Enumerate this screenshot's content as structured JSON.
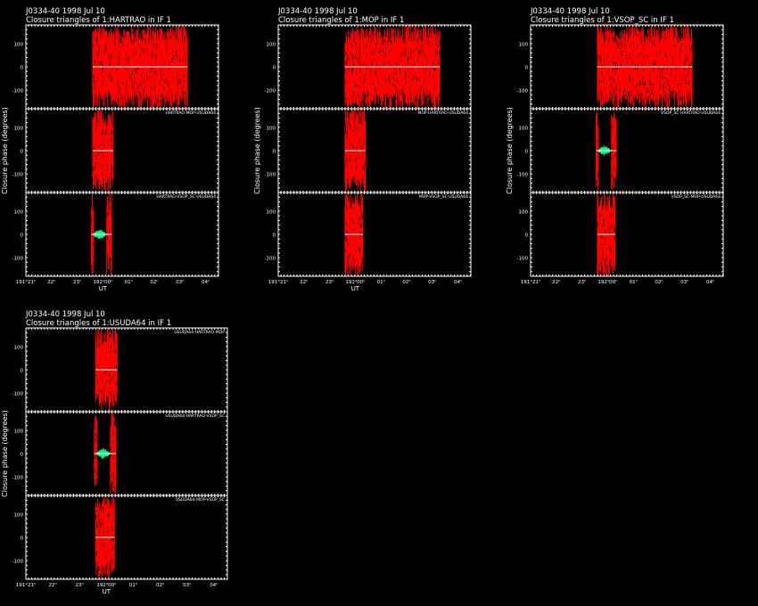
{
  "colors": {
    "background": "#000000",
    "axes": "#ffffff",
    "data": "#ff0000",
    "model": "#00ff80",
    "zero_line": "#ffffff"
  },
  "chart_data": [
    {
      "type": "scatter",
      "title": "J0334-40  1998 Jul 10",
      "subtitle": "Closure triangles of 1:HARTRAO in IF 1",
      "xlabel": "UT",
      "ylabel": "Closure phase  (degrees)",
      "xlim": [
        21.0,
        28.5
      ],
      "x_ticks": [
        "191°21ʰ",
        "22ʰ",
        "23ʰ",
        "192ᵈ00ʰ",
        "01ʰ",
        "02ʰ",
        "03ʰ",
        "04ʰ"
      ],
      "ylim": [
        -180,
        180
      ],
      "y_ticks": [
        "100",
        "0",
        "-100"
      ],
      "grid": false,
      "panels": [
        {
          "label": "",
          "data": [
            {
              "x0": 23.6,
              "x1": 27.3,
              "spread": 180
            }
          ],
          "zero": [
            23.6,
            27.3
          ],
          "model": null
        },
        {
          "label": "HARTRAO-MOP-USUDA64",
          "data": [
            {
              "x0": 23.6,
              "x1": 24.4,
              "spread": 180
            }
          ],
          "zero": [
            23.6,
            24.4
          ],
          "model": null
        },
        {
          "label": "HARTRAO-VSOP_SC-USUDA64",
          "data": [
            {
              "x0": 23.55,
              "x1": 23.65,
              "spread": 180
            },
            {
              "x0": 24.15,
              "x1": 24.35,
              "spread": 180
            }
          ],
          "zero": [
            23.55,
            24.35
          ],
          "model": {
            "x0": 23.65,
            "x1": 24.1,
            "spread": 25
          }
        }
      ]
    },
    {
      "type": "scatter",
      "title": "J0334-40  1998 Jul 10",
      "subtitle": "Closure triangles of 1:MOP in IF 1",
      "xlabel": "UT",
      "ylabel": "Closure phase  (degrees)",
      "xlim": [
        21.0,
        28.5
      ],
      "x_ticks": [
        "191°21ʰ",
        "22ʰ",
        "23ʰ",
        "192ᵈ00ʰ",
        "01ʰ",
        "02ʰ",
        "03ʰ",
        "04ʰ"
      ],
      "ylim": [
        -180,
        180
      ],
      "y_ticks": [
        "100",
        "0",
        "-100"
      ],
      "grid": false,
      "panels": [
        {
          "label": "",
          "data": [
            {
              "x0": 23.6,
              "x1": 27.3,
              "spread": 180
            }
          ],
          "zero": [
            23.6,
            27.3
          ],
          "model": null
        },
        {
          "label": "MOP-HARTRAO-USUDA64",
          "data": [
            {
              "x0": 23.6,
              "x1": 24.4,
              "spread": 180
            }
          ],
          "zero": [
            23.6,
            24.4
          ],
          "model": null
        },
        {
          "label": "MOP-VSOP_SC-USUDA64",
          "data": [
            {
              "x0": 23.6,
              "x1": 24.3,
              "spread": 180
            }
          ],
          "zero": [
            23.6,
            24.3
          ],
          "model": null
        }
      ]
    },
    {
      "type": "scatter",
      "title": "J0334-40  1998 Jul 10",
      "subtitle": "Closure triangles of 1:VSOP_SC in IF 1",
      "xlabel": "",
      "ylabel": "Closure phase  (degrees)",
      "xlim": [
        21.0,
        28.5
      ],
      "x_ticks": [
        "191°21ʰ",
        "22ʰ",
        "23ʰ",
        "192ᵈ00ʰ",
        "01ʰ",
        "02ʰ",
        "03ʰ",
        "04ʰ"
      ],
      "ylim": [
        -180,
        180
      ],
      "y_ticks": [
        "100",
        "0",
        "-100"
      ],
      "grid": false,
      "panels": [
        {
          "label": "",
          "data": [
            {
              "x0": 23.6,
              "x1": 27.3,
              "spread": 180
            }
          ],
          "zero": [
            23.6,
            27.3
          ],
          "model": null
        },
        {
          "label": "VSOP_SC-HARTRAO-USUDA64",
          "data": [
            {
              "x0": 23.55,
              "x1": 23.65,
              "spread": 180
            },
            {
              "x0": 24.15,
              "x1": 24.35,
              "spread": 180
            }
          ],
          "zero": [
            23.55,
            24.35
          ],
          "model": {
            "x0": 23.65,
            "x1": 24.1,
            "spread": 25
          }
        },
        {
          "label": "VSOP_SC-MOP-USUDA64",
          "data": [
            {
              "x0": 23.6,
              "x1": 24.3,
              "spread": 180
            }
          ],
          "zero": [
            23.6,
            24.3
          ],
          "model": null
        }
      ]
    },
    {
      "type": "scatter",
      "title": "J0334-40  1998 Jul 10",
      "subtitle": "Closure triangles of 1:USUDA64 in IF 1",
      "xlabel": "UT",
      "ylabel": "Closure phase  (degrees)",
      "xlim": [
        21.0,
        28.5
      ],
      "x_ticks": [
        "191°21ʰ",
        "22ʰ",
        "23ʰ",
        "192ᵈ00ʰ",
        "01ʰ",
        "02ʰ",
        "03ʰ",
        "04ʰ"
      ],
      "ylim": [
        -180,
        180
      ],
      "y_ticks": [
        "100",
        "0",
        "-100"
      ],
      "grid": false,
      "panels": [
        {
          "label": "USUDA64-HARTRAO-MOP",
          "data": [
            {
              "x0": 23.6,
              "x1": 24.4,
              "spread": 180
            }
          ],
          "zero": [
            23.6,
            24.4
          ],
          "model": null
        },
        {
          "label": "USUDA64-HARTRAO-VSOP_SC",
          "data": [
            {
              "x0": 23.55,
              "x1": 23.65,
              "spread": 180
            },
            {
              "x0": 24.15,
              "x1": 24.35,
              "spread": 180
            }
          ],
          "zero": [
            23.55,
            24.35
          ],
          "model": {
            "x0": 23.65,
            "x1": 24.1,
            "spread": 25
          }
        },
        {
          "label": "USUDA64-MOP-VSOP_SC",
          "data": [
            {
              "x0": 23.6,
              "x1": 24.3,
              "spread": 180
            }
          ],
          "zero": [
            23.6,
            24.3
          ],
          "model": null
        }
      ]
    }
  ]
}
